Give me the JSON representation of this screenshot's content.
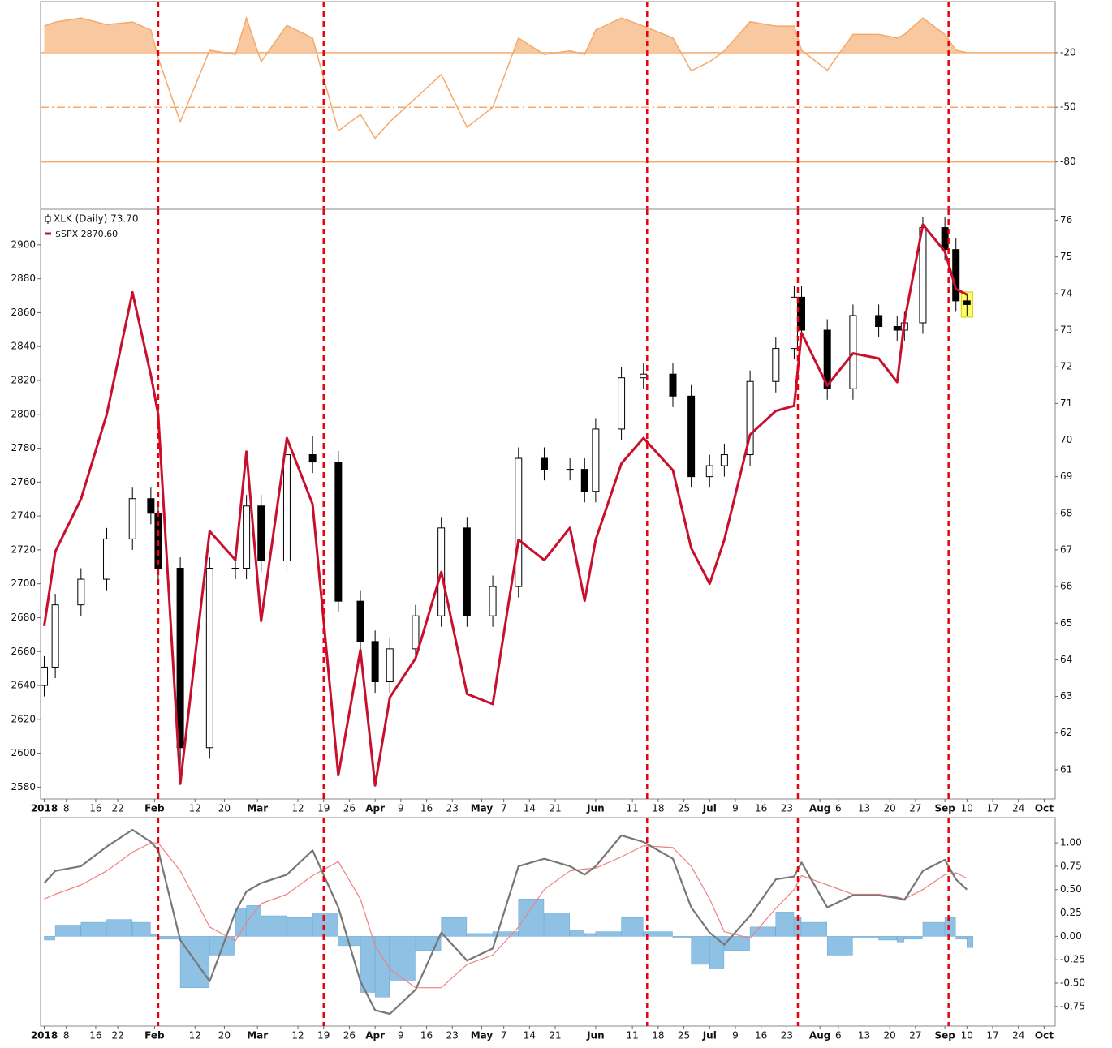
{
  "chart_data": [
    {
      "type": "area",
      "x": [
        "2018-01-02",
        "2018-01-05",
        "2018-01-12",
        "2018-01-19",
        "2018-01-26",
        "2018-01-31",
        "2018-02-02",
        "2018-02-08",
        "2018-02-16",
        "2018-02-23",
        "2018-02-26",
        "2018-03-02",
        "2018-03-09",
        "2018-03-16",
        "2018-03-23",
        "2018-03-29",
        "2018-04-02",
        "2018-04-06",
        "2018-04-13",
        "2018-04-20",
        "2018-04-27",
        "2018-05-04",
        "2018-05-11",
        "2018-05-18",
        "2018-05-25",
        "2018-05-29",
        "2018-06-01",
        "2018-06-08",
        "2018-06-14",
        "2018-06-22",
        "2018-06-27",
        "2018-07-02",
        "2018-07-06",
        "2018-07-13",
        "2018-07-20",
        "2018-07-25",
        "2018-07-27",
        "2018-08-03",
        "2018-08-10",
        "2018-08-17",
        "2018-08-22",
        "2018-08-24",
        "2018-08-29",
        "2018-09-04",
        "2018-09-07",
        "2018-09-10"
      ],
      "values": [
        -5.4,
        -3.2,
        -1,
        -4.6,
        -3.2,
        -7.6,
        -23,
        -58,
        -18.7,
        -21,
        -1,
        -25,
        -5,
        -12,
        -63,
        -54,
        -67,
        -58,
        -45,
        -32,
        -61,
        -50,
        -12,
        -21,
        -19,
        -21,
        -7.6,
        -1,
        -5.4,
        -12,
        -30,
        -25,
        -19,
        -3,
        -5.4,
        -5.4,
        -18.7,
        -29.7,
        -10,
        -10,
        -12,
        -10,
        -1,
        -10,
        -18.7,
        -20
      ],
      "color": "#f4a96a",
      "fill_color": "#f8c9a0",
      "fill_above": -20,
      "xlim": [
        "2018-01-01",
        "2018-10-04"
      ],
      "ylim": [
        -106,
        8
      ],
      "yticks": [
        -20,
        -50,
        -80
      ],
      "tick_line_styles": [
        "solid",
        "dashdot",
        "solid"
      ],
      "vlines": [
        "2018-02-02",
        "2018-03-19",
        "2018-06-15",
        "2018-07-26",
        "2018-09-05"
      ],
      "vline_color": "#e8000b"
    },
    {
      "type": "candlestick",
      "x": [
        "2018-01-02",
        "2018-01-05",
        "2018-01-12",
        "2018-01-19",
        "2018-01-26",
        "2018-01-31",
        "2018-02-02",
        "2018-02-08",
        "2018-02-16",
        "2018-02-23",
        "2018-02-26",
        "2018-03-02",
        "2018-03-09",
        "2018-03-16",
        "2018-03-23",
        "2018-03-29",
        "2018-04-02",
        "2018-04-06",
        "2018-04-13",
        "2018-04-20",
        "2018-04-27",
        "2018-05-04",
        "2018-05-11",
        "2018-05-18",
        "2018-05-25",
        "2018-05-29",
        "2018-06-01",
        "2018-06-08",
        "2018-06-14",
        "2018-06-22",
        "2018-06-27",
        "2018-07-02",
        "2018-07-06",
        "2018-07-13",
        "2018-07-20",
        "2018-07-25",
        "2018-07-27",
        "2018-08-03",
        "2018-08-10",
        "2018-08-17",
        "2018-08-22",
        "2018-08-24",
        "2018-08-29",
        "2018-09-04",
        "2018-09-07",
        "2018-09-10"
      ],
      "series": [
        {
          "name": "XLK (Daily) 73.70",
          "kind": "candle",
          "axis": "y2",
          "color": "#000000",
          "highlight_last": "#ffff66",
          "open": [
            63.3,
            63.8,
            65.5,
            66.2,
            67.3,
            68.4,
            68.0,
            66.5,
            61.6,
            66.5,
            66.5,
            68.2,
            66.7,
            69.6,
            69.4,
            65.6,
            64.5,
            63.4,
            64.3,
            65.2,
            67.6,
            65.2,
            66.0,
            69.5,
            69.2,
            69.2,
            68.6,
            70.3,
            71.7,
            71.8,
            71.2,
            69.0,
            69.3,
            69.6,
            71.6,
            72.5,
            73.9,
            73.0,
            71.4,
            73.4,
            73.1,
            73.0,
            73.2,
            75.8,
            75.2,
            73.8
          ],
          "high": [
            64.1,
            65.8,
            66.5,
            67.6,
            68.7,
            68.7,
            68.3,
            66.8,
            66.8,
            66.8,
            68.5,
            68.5,
            69.9,
            70.1,
            69.7,
            65.9,
            64.8,
            64.6,
            65.5,
            67.9,
            67.9,
            66.3,
            69.8,
            69.8,
            69.5,
            69.5,
            70.6,
            72.0,
            72.1,
            72.1,
            71.5,
            69.6,
            69.9,
            71.9,
            72.8,
            74.2,
            74.2,
            73.3,
            73.7,
            73.7,
            73.4,
            73.5,
            76.1,
            76.1,
            75.5,
            74.0
          ],
          "low": [
            63.0,
            63.5,
            65.2,
            65.9,
            67.0,
            67.7,
            66.2,
            60.9,
            61.3,
            66.2,
            66.2,
            66.4,
            66.4,
            69.1,
            65.3,
            64.2,
            63.1,
            63.1,
            64.0,
            64.9,
            64.9,
            64.9,
            65.7,
            68.9,
            68.9,
            68.3,
            68.3,
            70.0,
            71.4,
            70.9,
            68.7,
            68.7,
            69.0,
            69.3,
            71.3,
            72.2,
            72.7,
            71.1,
            71.1,
            72.8,
            72.7,
            72.7,
            72.9,
            74.9,
            73.5,
            73.4
          ],
          "close": [
            63.8,
            65.5,
            66.2,
            67.3,
            68.4,
            68.0,
            66.5,
            61.6,
            66.5,
            66.5,
            68.2,
            66.7,
            69.6,
            69.4,
            65.6,
            64.5,
            63.4,
            64.3,
            65.2,
            67.6,
            65.2,
            66.0,
            69.5,
            69.2,
            69.2,
            68.6,
            70.3,
            71.7,
            71.8,
            71.2,
            69.0,
            69.3,
            69.6,
            71.6,
            72.5,
            73.9,
            73.0,
            71.4,
            73.4,
            73.1,
            73.0,
            73.2,
            75.8,
            75.2,
            73.8,
            73.7
          ]
        },
        {
          "name": "$SPX 2870.60",
          "kind": "line",
          "color": "#c8102e",
          "values": [
            2675,
            2719,
            2750,
            2800,
            2872,
            2823,
            2800,
            2582,
            2731,
            2714,
            2778,
            2678,
            2786,
            2747,
            2587,
            2661,
            2581,
            2633,
            2656,
            2707,
            2635,
            2629,
            2726,
            2714,
            2733,
            2690,
            2726,
            2771,
            2786,
            2767,
            2721,
            2700,
            2726,
            2788,
            2802,
            2805,
            2848,
            2817,
            2836,
            2833,
            2819,
            2855,
            2912,
            2896,
            2874,
            2870.6
          ]
        }
      ],
      "xlim": [
        "2018-01-01",
        "2018-10-04"
      ],
      "ylim": [
        2573,
        2921
      ],
      "y2lim": [
        60.2,
        76.3
      ],
      "yticks": [
        2580,
        2600,
        2620,
        2640,
        2660,
        2680,
        2700,
        2720,
        2740,
        2760,
        2780,
        2800,
        2820,
        2840,
        2860,
        2880,
        2900
      ],
      "y2ticks": [
        61,
        62,
        63,
        64,
        65,
        66,
        67,
        68,
        69,
        70,
        71,
        72,
        73,
        74,
        75,
        76
      ],
      "xticks": [
        {
          "value": "2018-01-02",
          "label": "2018"
        },
        {
          "value": "2018-01-08",
          "label": "8"
        },
        {
          "value": "2018-01-16",
          "label": "16"
        },
        {
          "value": "2018-01-22",
          "label": "22"
        },
        {
          "value": "2018-02-01",
          "label": "Feb"
        },
        {
          "value": "2018-02-12",
          "label": "12"
        },
        {
          "value": "2018-02-20",
          "label": "20"
        },
        {
          "value": "2018-03-01",
          "label": "Mar"
        },
        {
          "value": "2018-03-12",
          "label": "12"
        },
        {
          "value": "2018-03-19",
          "label": "19"
        },
        {
          "value": "2018-03-26",
          "label": "26"
        },
        {
          "value": "2018-04-02",
          "label": "Apr"
        },
        {
          "value": "2018-04-09",
          "label": "9"
        },
        {
          "value": "2018-04-16",
          "label": "16"
        },
        {
          "value": "2018-04-23",
          "label": "23"
        },
        {
          "value": "2018-05-01",
          "label": "May"
        },
        {
          "value": "2018-05-07",
          "label": "7"
        },
        {
          "value": "2018-05-14",
          "label": "14"
        },
        {
          "value": "2018-05-21",
          "label": "21"
        },
        {
          "value": "2018-06-01",
          "label": "Jun"
        },
        {
          "value": "2018-06-11",
          "label": "11"
        },
        {
          "value": "2018-06-18",
          "label": "18"
        },
        {
          "value": "2018-06-25",
          "label": "25"
        },
        {
          "value": "2018-07-02",
          "label": "Jul"
        },
        {
          "value": "2018-07-09",
          "label": "9"
        },
        {
          "value": "2018-07-16",
          "label": "16"
        },
        {
          "value": "2018-07-23",
          "label": "23"
        },
        {
          "value": "2018-08-01",
          "label": "Aug"
        },
        {
          "value": "2018-08-06",
          "label": "6"
        },
        {
          "value": "2018-08-13",
          "label": "13"
        },
        {
          "value": "2018-08-20",
          "label": "20"
        },
        {
          "value": "2018-08-27",
          "label": "27"
        },
        {
          "value": "2018-09-04",
          "label": "Sep"
        },
        {
          "value": "2018-09-10",
          "label": "10"
        },
        {
          "value": "2018-09-17",
          "label": "17"
        },
        {
          "value": "2018-09-24",
          "label": "24"
        },
        {
          "value": "2018-10-01",
          "label": "Oct"
        }
      ],
      "vlines": [
        "2018-02-02",
        "2018-03-19",
        "2018-06-15",
        "2018-07-26",
        "2018-09-05"
      ],
      "vline_color": "#e8000b"
    },
    {
      "type": "macd",
      "x": [
        "2018-01-02",
        "2018-01-05",
        "2018-01-12",
        "2018-01-19",
        "2018-01-26",
        "2018-01-31",
        "2018-02-02",
        "2018-02-08",
        "2018-02-16",
        "2018-02-23",
        "2018-02-26",
        "2018-03-02",
        "2018-03-09",
        "2018-03-16",
        "2018-03-23",
        "2018-03-29",
        "2018-04-02",
        "2018-04-06",
        "2018-04-13",
        "2018-04-20",
        "2018-04-27",
        "2018-05-04",
        "2018-05-11",
        "2018-05-18",
        "2018-05-25",
        "2018-05-29",
        "2018-06-01",
        "2018-06-08",
        "2018-06-14",
        "2018-06-22",
        "2018-06-27",
        "2018-07-02",
        "2018-07-06",
        "2018-07-13",
        "2018-07-20",
        "2018-07-25",
        "2018-07-27",
        "2018-08-03",
        "2018-08-10",
        "2018-08-17",
        "2018-08-22",
        "2018-08-24",
        "2018-08-29",
        "2018-09-04",
        "2018-09-07",
        "2018-09-10"
      ],
      "series": [
        {
          "kind": "histogram",
          "color": "#8ec1e3",
          "values": [
            -0.04,
            0.12,
            0.15,
            0.18,
            0.15,
            0.02,
            -0.03,
            -0.55,
            -0.2,
            0.3,
            0.33,
            0.22,
            0.2,
            0.25,
            -0.1,
            -0.6,
            -0.65,
            -0.48,
            -0.15,
            0.2,
            0.03,
            0.05,
            0.4,
            0.25,
            0.06,
            0.03,
            0.05,
            0.2,
            0.05,
            -0.02,
            -0.3,
            -0.35,
            -0.15,
            0.1,
            0.26,
            0.2,
            0.15,
            -0.2,
            -0.02,
            -0.04,
            -0.06,
            -0.03,
            0.15,
            0.2,
            -0.03,
            -0.12
          ]
        },
        {
          "kind": "line",
          "color": "#f08080",
          "width": 1.2,
          "values": [
            0.4,
            0.45,
            0.55,
            0.7,
            0.9,
            1.0,
            1.0,
            0.7,
            0.1,
            -0.05,
            0.15,
            0.35,
            0.45,
            0.65,
            0.8,
            0.4,
            -0.1,
            -0.35,
            -0.55,
            -0.55,
            -0.3,
            -0.2,
            0.1,
            0.5,
            0.7,
            0.72,
            0.73,
            0.85,
            0.97,
            0.95,
            0.75,
            0.4,
            0.05,
            -0.02,
            0.3,
            0.5,
            0.65,
            0.55,
            0.45,
            0.45,
            0.42,
            0.4,
            0.5,
            0.66,
            0.68,
            0.62
          ]
        },
        {
          "kind": "line",
          "color": "#777777",
          "width": 2.2,
          "values": [
            0.57,
            0.7,
            0.75,
            0.96,
            1.14,
            1.01,
            0.92,
            -0.04,
            -0.48,
            0.26,
            0.48,
            0.57,
            0.66,
            0.92,
            0.31,
            -0.48,
            -0.79,
            -0.83,
            -0.57,
            0.04,
            -0.26,
            -0.13,
            0.75,
            0.83,
            0.75,
            0.66,
            0.75,
            1.08,
            1.01,
            0.83,
            0.31,
            0.04,
            -0.09,
            0.22,
            0.61,
            0.64,
            0.79,
            0.31,
            0.44,
            0.44,
            0.41,
            0.39,
            0.7,
            0.82,
            0.61,
            0.5
          ]
        }
      ],
      "xlim": [
        "2018-01-01",
        "2018-10-04"
      ],
      "ylim": [
        -0.96,
        1.27
      ],
      "yticks": [
        {
          "value": 1,
          "label": "1.00"
        },
        {
          "value": 0.75,
          "label": "0.75"
        },
        {
          "value": 0.5,
          "label": "0.50"
        },
        {
          "value": 0.25,
          "label": "0.25"
        },
        {
          "value": 0,
          "label": "0.00"
        },
        {
          "value": -0.25,
          "label": "-0.25"
        },
        {
          "value": -0.5,
          "label": "-0.50"
        },
        {
          "value": -0.75,
          "label": "-0.75"
        }
      ],
      "xticks": [
        {
          "value": "2018-01-02",
          "label": "2018"
        },
        {
          "value": "2018-01-08",
          "label": "8"
        },
        {
          "value": "2018-01-16",
          "label": "16"
        },
        {
          "value": "2018-01-22",
          "label": "22"
        },
        {
          "value": "2018-02-01",
          "label": "Feb"
        },
        {
          "value": "2018-02-12",
          "label": "12"
        },
        {
          "value": "2018-02-20",
          "label": "20"
        },
        {
          "value": "2018-03-01",
          "label": "Mar"
        },
        {
          "value": "2018-03-12",
          "label": "12"
        },
        {
          "value": "2018-03-19",
          "label": "19"
        },
        {
          "value": "2018-03-26",
          "label": "26"
        },
        {
          "value": "2018-04-02",
          "label": "Apr"
        },
        {
          "value": "2018-04-09",
          "label": "9"
        },
        {
          "value": "2018-04-16",
          "label": "16"
        },
        {
          "value": "2018-04-23",
          "label": "23"
        },
        {
          "value": "2018-05-01",
          "label": "May"
        },
        {
          "value": "2018-05-07",
          "label": "7"
        },
        {
          "value": "2018-05-14",
          "label": "14"
        },
        {
          "value": "2018-05-21",
          "label": "21"
        },
        {
          "value": "2018-06-01",
          "label": "Jun"
        },
        {
          "value": "2018-06-11",
          "label": "11"
        },
        {
          "value": "2018-06-18",
          "label": "18"
        },
        {
          "value": "2018-06-25",
          "label": "25"
        },
        {
          "value": "2018-07-02",
          "label": "Jul"
        },
        {
          "value": "2018-07-09",
          "label": "9"
        },
        {
          "value": "2018-07-16",
          "label": "16"
        },
        {
          "value": "2018-07-23",
          "label": "23"
        },
        {
          "value": "2018-08-01",
          "label": "Aug"
        },
        {
          "value": "2018-08-06",
          "label": "6"
        },
        {
          "value": "2018-08-13",
          "label": "13"
        },
        {
          "value": "2018-08-20",
          "label": "20"
        },
        {
          "value": "2018-08-27",
          "label": "27"
        },
        {
          "value": "2018-09-04",
          "label": "Sep"
        },
        {
          "value": "2018-09-10",
          "label": "10"
        },
        {
          "value": "2018-09-17",
          "label": "17"
        },
        {
          "value": "2018-09-24",
          "label": "24"
        },
        {
          "value": "2018-10-01",
          "label": "Oct"
        }
      ],
      "vlines": [
        "2018-02-02",
        "2018-03-19",
        "2018-06-15",
        "2018-07-26",
        "2018-09-05"
      ],
      "vline_color": "#e8000b"
    }
  ]
}
